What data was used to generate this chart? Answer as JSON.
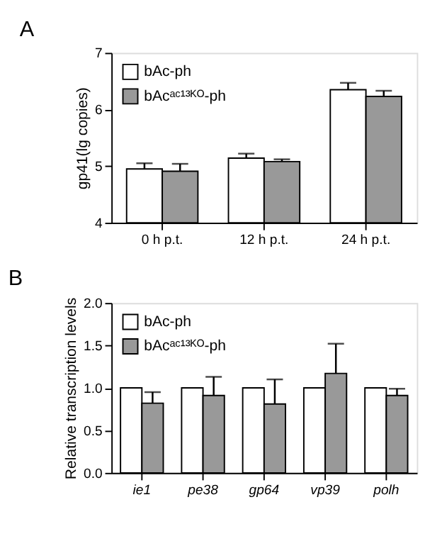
{
  "chart_data": [
    {
      "type": "bar",
      "title": "A",
      "ylabel": "gp41(lg copies)",
      "categories": [
        "0 h p.t.",
        "12 h p.t.",
        "24 h p.t."
      ],
      "series": [
        {
          "name": "bAc-ph",
          "color": "#ffffff",
          "values": [
            4.95,
            5.14,
            6.35
          ],
          "errors": [
            [
              4.95,
              5.05
            ],
            [
              5.14,
              5.22
            ],
            [
              6.35,
              6.47
            ]
          ]
        },
        {
          "name": "bAcᵃᶜ¹³ᴷᴼ-ph",
          "color": "#999999",
          "values": [
            4.91,
            5.08,
            6.23
          ],
          "errors": [
            [
              4.91,
              5.04
            ],
            [
              5.08,
              5.12
            ],
            [
              6.23,
              6.33
            ]
          ]
        }
      ],
      "ylim": [
        4,
        7
      ],
      "yticks": [
        4,
        5,
        6,
        7
      ],
      "legend": "top left",
      "grid": false
    },
    {
      "type": "bar",
      "title": "B",
      "ylabel": "Relative  transcription levels",
      "categories": [
        "ie1",
        "pe38",
        "gp64",
        "vp39",
        "polh"
      ],
      "series": [
        {
          "name": "bAc-ph",
          "color": "#ffffff",
          "values": [
            1,
            1,
            1,
            1,
            1
          ]
        },
        {
          "name": "bAcᵃᶜ¹³ᴷᴼ-ph",
          "color": "#999999",
          "values": [
            0.82,
            0.91,
            0.81,
            1.17,
            0.91
          ],
          "errors": [
            [
              0.82,
              0.95
            ],
            [
              0.91,
              1.13
            ],
            [
              0.81,
              1.1
            ],
            [
              1.17,
              1.52
            ],
            [
              0.91,
              0.99
            ]
          ]
        }
      ],
      "ylim": [
        0,
        2
      ],
      "yticks": [
        {
          "value": 0,
          "label": "0.0"
        },
        {
          "value": 0.5,
          "label": "0.5"
        },
        {
          "value": 1,
          "label": "1.0"
        },
        {
          "value": 1.5,
          "label": "1.5"
        },
        {
          "value": 2,
          "label": "2.0"
        }
      ],
      "legend": "top left",
      "grid": false
    }
  ]
}
